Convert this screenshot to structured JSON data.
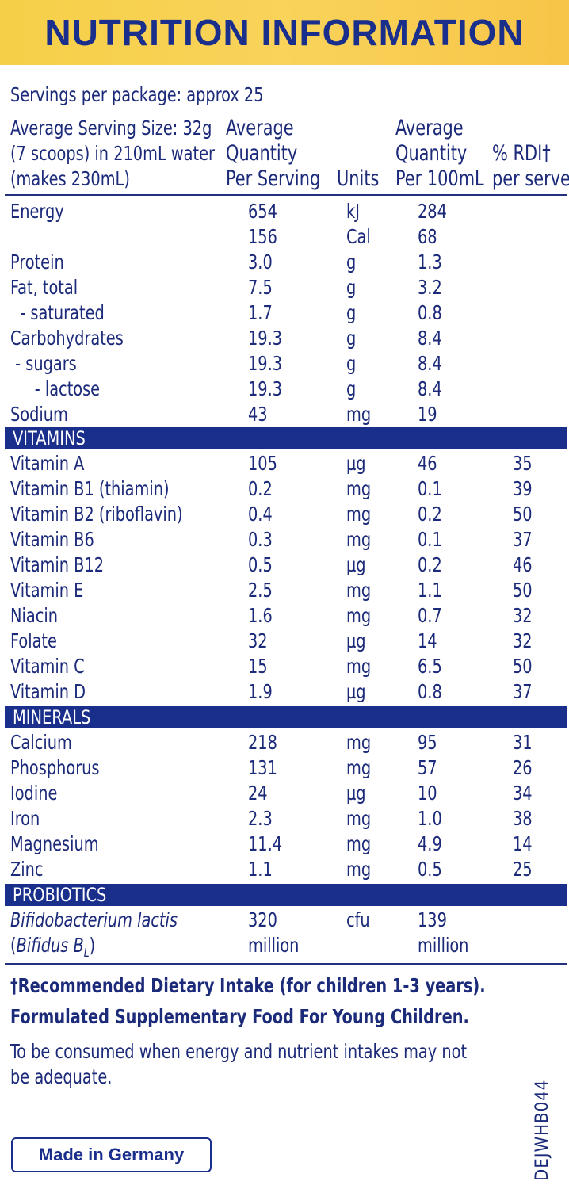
{
  "title": "NUTRITION INFORMATION",
  "intro": {
    "servings_per_package": "Servings per package: approx 25",
    "serving_size_lines": [
      "Average Serving Size: 32g",
      "(7 scoops) in 210mL water",
      "(makes 230mL)"
    ]
  },
  "columns": {
    "serving": [
      "Average",
      "Quantity",
      "Per Serving"
    ],
    "units": "Units",
    "per100": [
      "Average",
      "Quantity",
      "Per 100mL"
    ],
    "rdi": [
      "% RDI†",
      "per serve"
    ]
  },
  "general_rows": [
    {
      "name": "Energy",
      "serving": "654",
      "unit": "kJ",
      "per100": "284",
      "rdi": ""
    },
    {
      "name": "",
      "serving": "156",
      "unit": "Cal",
      "per100": "68",
      "rdi": ""
    },
    {
      "name": "Protein",
      "serving": "3.0",
      "unit": "g",
      "per100": "1.3",
      "rdi": ""
    },
    {
      "name": "Fat, total",
      "serving": "7.5",
      "unit": "g",
      "per100": "3.2",
      "rdi": ""
    },
    {
      "name": "  - saturated",
      "serving": "1.7",
      "unit": "g",
      "per100": "0.8",
      "rdi": ""
    },
    {
      "name": "Carbohydrates",
      "serving": "19.3",
      "unit": "g",
      "per100": "8.4",
      "rdi": ""
    },
    {
      "name": " - sugars",
      "serving": "19.3",
      "unit": "g",
      "per100": "8.4",
      "rdi": ""
    },
    {
      "name": "     - lactose",
      "serving": "19.3",
      "unit": "g",
      "per100": "8.4",
      "rdi": ""
    },
    {
      "name": "Sodium",
      "serving": "43",
      "unit": "mg",
      "per100": "19",
      "rdi": ""
    }
  ],
  "vitamins_label": "VITAMINS",
  "vitamin_rows": [
    {
      "name": "Vitamin A",
      "serving": "105",
      "unit": "µg",
      "per100": "46",
      "rdi": "35"
    },
    {
      "name": "Vitamin B1 (thiamin)",
      "serving": "0.2",
      "unit": "mg",
      "per100": "0.1",
      "rdi": "39"
    },
    {
      "name": "Vitamin B2 (riboflavin)",
      "serving": "0.4",
      "unit": "mg",
      "per100": "0.2",
      "rdi": "50"
    },
    {
      "name": "Vitamin B6",
      "serving": "0.3",
      "unit": "mg",
      "per100": "0.1",
      "rdi": "37"
    },
    {
      "name": "Vitamin B12",
      "serving": "0.5",
      "unit": "µg",
      "per100": "0.2",
      "rdi": "46"
    },
    {
      "name": "Vitamin E",
      "serving": "2.5",
      "unit": "mg",
      "per100": "1.1",
      "rdi": "50"
    },
    {
      "name": "Niacin",
      "serving": "1.6",
      "unit": "mg",
      "per100": "0.7",
      "rdi": "32"
    },
    {
      "name": "Folate",
      "serving": "32",
      "unit": "µg",
      "per100": "14",
      "rdi": "32"
    },
    {
      "name": "Vitamin C",
      "serving": "15",
      "unit": "mg",
      "per100": "6.5",
      "rdi": "50"
    },
    {
      "name": "Vitamin D",
      "serving": "1.9",
      "unit": "µg",
      "per100": "0.8",
      "rdi": "37"
    }
  ],
  "minerals_label": "MINERALS",
  "mineral_rows": [
    {
      "name": "Calcium",
      "serving": "218",
      "unit": "mg",
      "per100": "95",
      "rdi": "31"
    },
    {
      "name": "Phosphorus",
      "serving": "131",
      "unit": "mg",
      "per100": "57",
      "rdi": "26"
    },
    {
      "name": "Iodine",
      "serving": "24",
      "unit": "µg",
      "per100": "10",
      "rdi": "34"
    },
    {
      "name": "Iron",
      "serving": "2.3",
      "unit": "mg",
      "per100": "1.0",
      "rdi": "38"
    },
    {
      "name": "Magnesium",
      "serving": "11.4",
      "unit": "mg",
      "per100": "4.9",
      "rdi": "14"
    },
    {
      "name": "Zinc",
      "serving": "1.1",
      "unit": "mg",
      "per100": "0.5",
      "rdi": "25"
    }
  ],
  "probiotics_label": "PROBIOTICS",
  "probiotic": {
    "name_line1": "Bifidobacterium lactis",
    "name_line2": "(Bifidus BL)",
    "serving_line1": "320",
    "serving_line2": "million",
    "unit": "cfu",
    "per100_line1": "139",
    "per100_line2": "million"
  },
  "footnotes": {
    "rdi_note": "†Recommended Dietary Intake (for children 1-3 years).",
    "formulated": "Formulated Supplementary Food For Young Children.",
    "consume_line1": "To be consumed when energy and nutrient intakes may not",
    "consume_line2": "be adequate."
  },
  "made_in": "Made in Germany",
  "code": "DEJWHB044",
  "colors": {
    "brand_blue": "#1a2f8c",
    "banner_yellow": "#f6cf48",
    "text": "#1c2a7a"
  }
}
